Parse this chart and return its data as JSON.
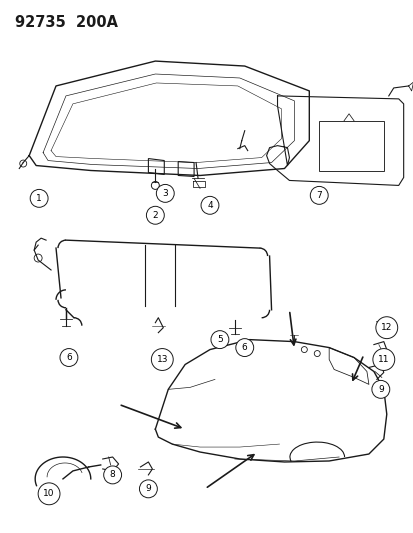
{
  "title": "92735  200A",
  "bg_color": "#ffffff",
  "line_color": "#1a1a1a",
  "figsize": [
    4.14,
    5.33
  ],
  "dpi": 100
}
